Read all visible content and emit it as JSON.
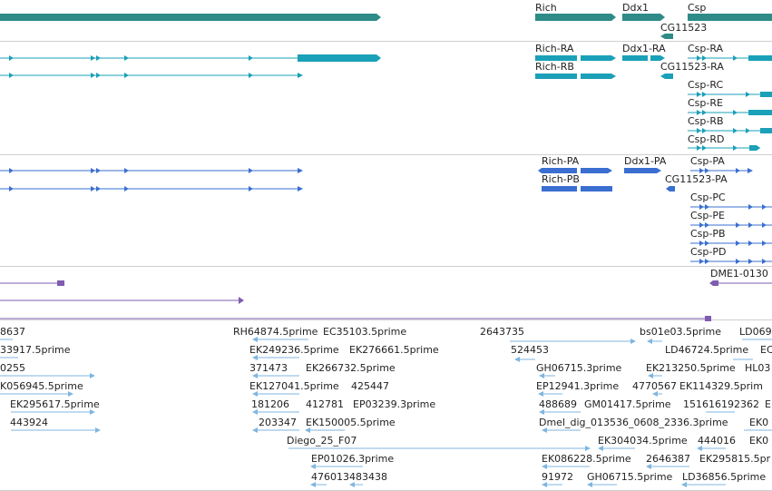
{
  "colors": {
    "gene": "#2e8b87",
    "transcript": "#1aa0b8",
    "protein": "#3a6fd1",
    "dme": "#7f5cb0",
    "est": "#7fb6e0",
    "divider": "#cfcfcf"
  },
  "genes": {
    "rich": "Rich",
    "ddx1": "Ddx1",
    "csp": "Csp",
    "cg11523": "CG11523"
  },
  "transcripts": {
    "rich_ra": "Rich-RA",
    "rich_rb": "Rich-RB",
    "ddx1_ra": "Ddx1-RA",
    "cg11523_ra": "CG11523-RA",
    "csp_ra": "Csp-RA",
    "csp_rc": "Csp-RC",
    "csp_re": "Csp-RE",
    "csp_rb": "Csp-RB",
    "csp_rd": "Csp-RD"
  },
  "proteins": {
    "rich_pa": "Rich-PA",
    "rich_pb": "Rich-PB",
    "ddx1_pa": "Ddx1-PA",
    "cg11523_pa": "CG11523-PA",
    "csp_pa": "Csp-PA",
    "csp_pc": "Csp-PC",
    "csp_pe": "Csp-PE",
    "csp_pb": "Csp-PB",
    "csp_pd": "Csp-PD"
  },
  "dme": {
    "label": "DME1-0130"
  },
  "ests": {
    "l01": "8637",
    "l02": "RH64874.5prime",
    "l03": "EC35103.5prime",
    "l04": "2643735",
    "l05": "bs01e03.5prime",
    "l06": "LD069",
    "l07": "33917.5prime",
    "l08": "EK249236.5prime",
    "l09": "EK276661.5prime",
    "l10": "524453",
    "l11": "LD46724.5prime",
    "l12": "EC",
    "l13": "0255",
    "l14": "371473",
    "l15": "EK266732.5prime",
    "l16": "GH06715.3prime",
    "l17": "EK213250.5prime",
    "l18": "HL03",
    "l19": "K056945.5prime",
    "l20": "EK127041.5prime",
    "l21": "425447",
    "l22": "EP12941.3prime",
    "l23": "4770567",
    "l24": "EK114329.5prim",
    "l25": "EK295617.5prime",
    "l26": "181206",
    "l27": "412781",
    "l28": "EP03239.3prime",
    "l29": "488689",
    "l30": "GM01417.5prime",
    "l31": "15161619",
    "l32": "2362",
    "l33": "E",
    "l34": "443924",
    "l35": "203347",
    "l36": "EK150005.5prime",
    "l37": "Dmel_dig_013536_0608_2336.3prime",
    "l38": "EK0",
    "l39": "Diego_25_F07",
    "l40": "EK304034.5prime",
    "l41": "444016",
    "l42": "EK0",
    "l43": "EP01026.3prime",
    "l44": "EK086228.5prime",
    "l45": "2646387",
    "l46": "EK295815.5pr",
    "l47": "476013483438",
    "l48": "91972",
    "l49": "GH06715.5prime",
    "l50": "LD36856.5prime"
  }
}
